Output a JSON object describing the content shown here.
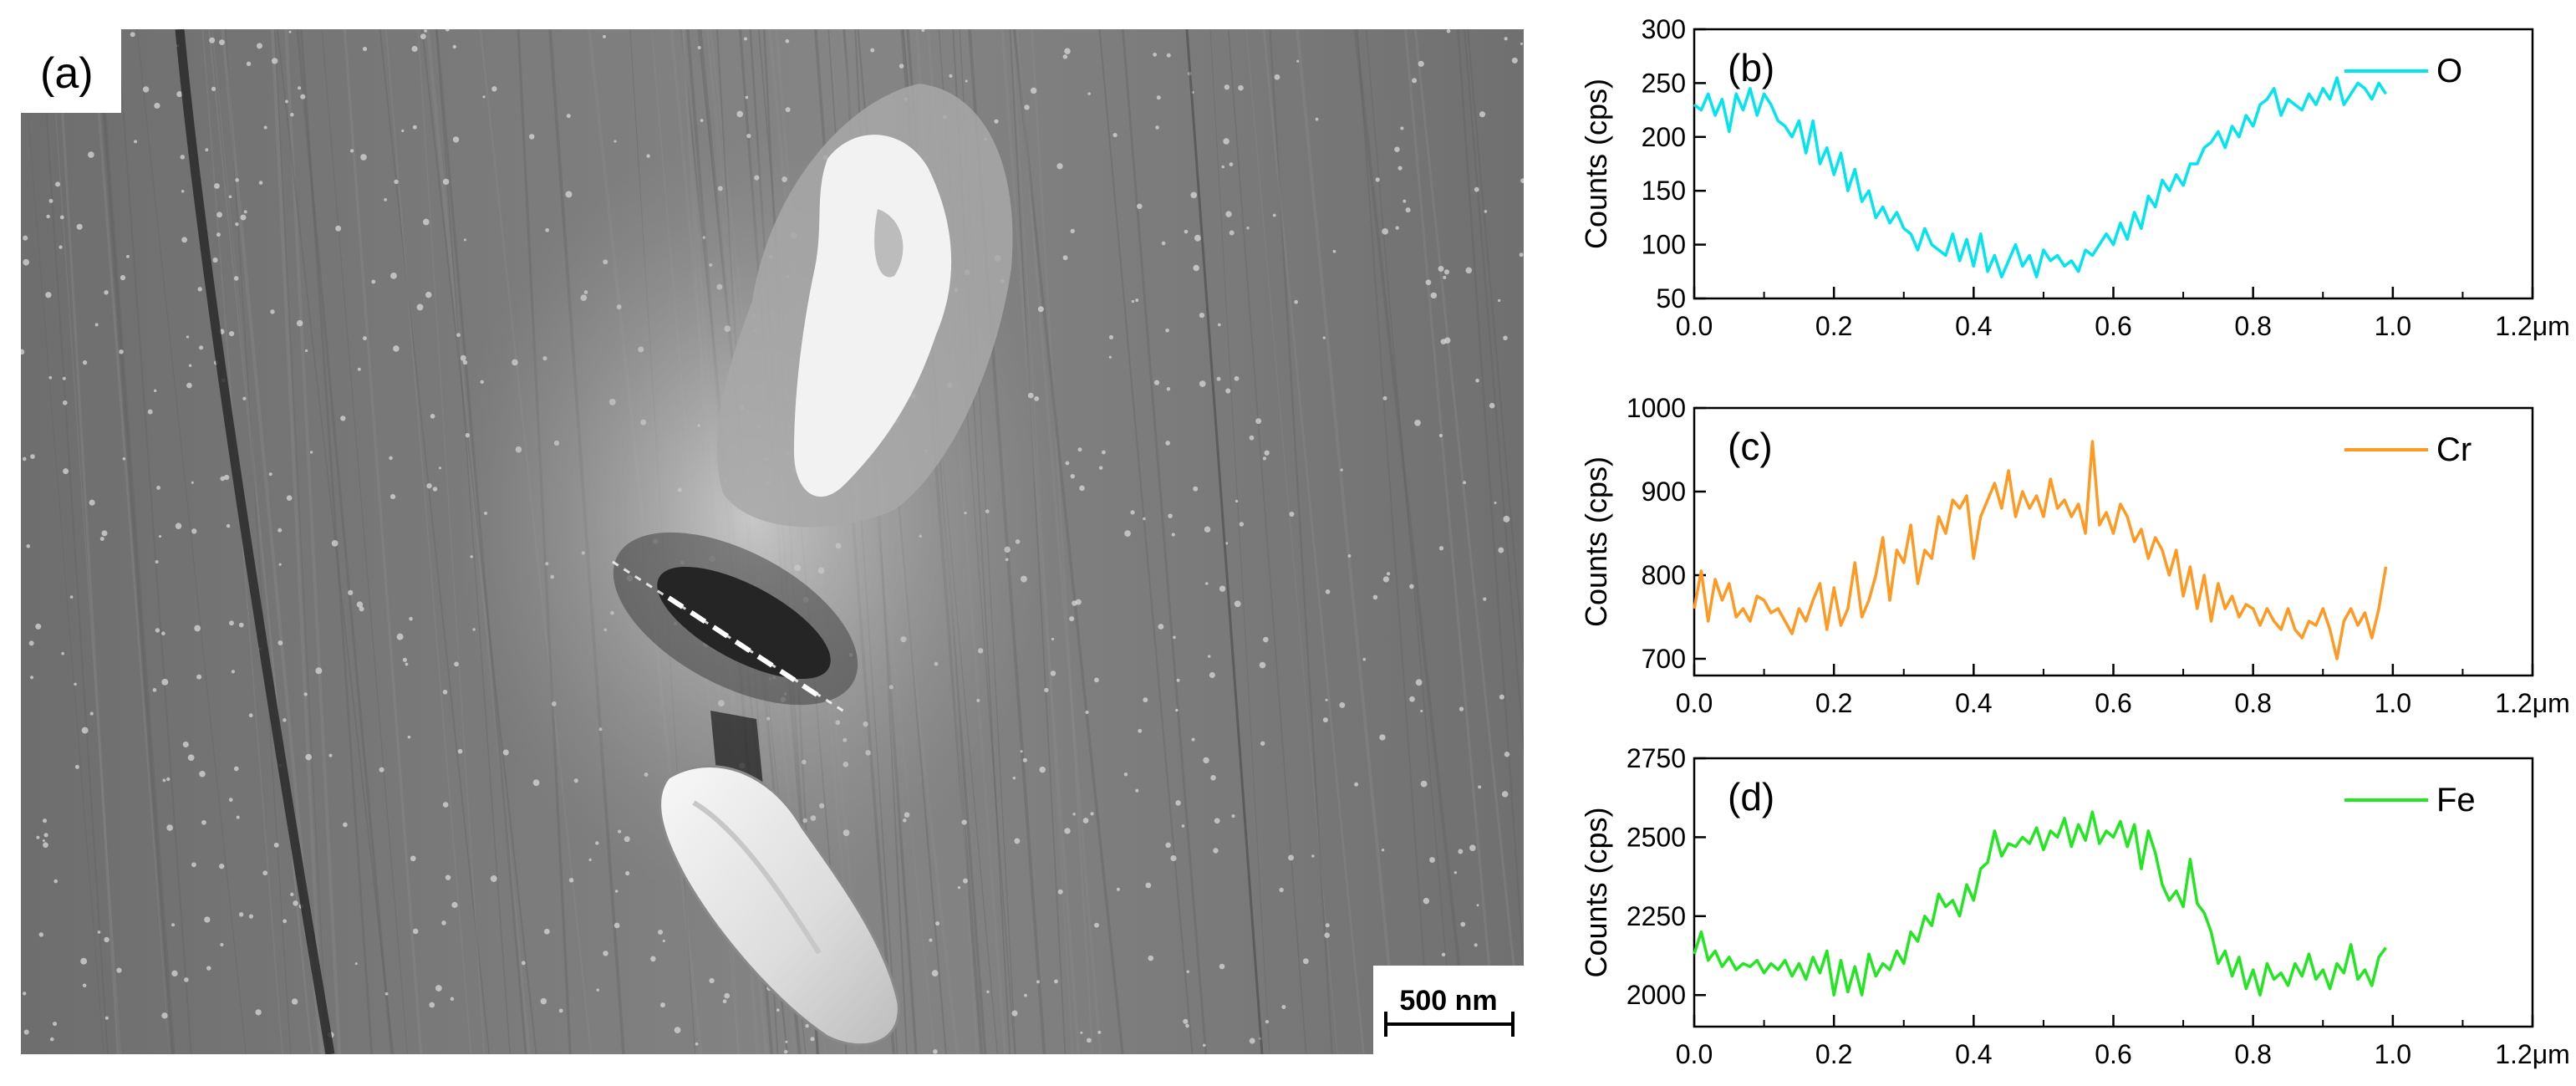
{
  "panel_a": {
    "label": "(a)",
    "scale_bar_label": "500 nm"
  },
  "chart_data": [
    {
      "type": "line",
      "panel_label": "(b)",
      "ylabel": "Counts (cps)",
      "xlim": [
        0,
        1.2
      ],
      "ylim": [
        50,
        300
      ],
      "x_ticks": [
        "0.0",
        "0.2",
        "0.4",
        "0.6",
        "0.8",
        "1.0",
        "1.2μm"
      ],
      "y_ticks": [
        "50",
        "100",
        "150",
        "200",
        "250",
        "300"
      ],
      "legend_position": "top-right",
      "series": [
        {
          "name": "O",
          "color": "#00e5ee",
          "x_step": 0.01,
          "values": [
            230,
            225,
            240,
            220,
            235,
            205,
            240,
            225,
            245,
            220,
            240,
            230,
            215,
            210,
            200,
            215,
            185,
            215,
            175,
            190,
            165,
            185,
            150,
            170,
            140,
            150,
            125,
            135,
            120,
            130,
            115,
            110,
            95,
            115,
            100,
            95,
            90,
            110,
            85,
            105,
            80,
            110,
            75,
            90,
            70,
            85,
            100,
            80,
            90,
            70,
            95,
            85,
            90,
            80,
            85,
            75,
            95,
            90,
            100,
            110,
            100,
            120,
            105,
            130,
            115,
            145,
            135,
            160,
            150,
            165,
            155,
            175,
            175,
            190,
            195,
            205,
            190,
            210,
            200,
            220,
            210,
            230,
            235,
            245,
            220,
            235,
            230,
            225,
            240,
            230,
            245,
            235,
            255,
            230,
            240,
            250,
            245,
            235,
            250,
            240
          ]
        }
      ]
    },
    {
      "type": "line",
      "panel_label": "(c)",
      "ylabel": "Counts (cps)",
      "xlim": [
        0,
        1.2
      ],
      "ylim": [
        680,
        1000
      ],
      "x_ticks": [
        "0.0",
        "0.2",
        "0.4",
        "0.6",
        "0.8",
        "1.0",
        "1.2μm"
      ],
      "y_ticks": [
        "700",
        "800",
        "900",
        "1000"
      ],
      "legend_position": "top-right",
      "series": [
        {
          "name": "Cr",
          "color": "#ff9922",
          "x_step": 0.01,
          "values": [
            760,
            805,
            745,
            795,
            770,
            790,
            750,
            760,
            745,
            775,
            770,
            755,
            760,
            745,
            730,
            760,
            745,
            770,
            790,
            735,
            785,
            740,
            760,
            815,
            750,
            770,
            800,
            845,
            770,
            830,
            815,
            860,
            790,
            830,
            820,
            870,
            850,
            890,
            880,
            895,
            820,
            870,
            890,
            910,
            880,
            925,
            870,
            900,
            880,
            895,
            870,
            915,
            880,
            890,
            870,
            885,
            850,
            960,
            860,
            875,
            850,
            885,
            870,
            840,
            855,
            820,
            845,
            830,
            800,
            830,
            775,
            810,
            760,
            800,
            745,
            790,
            760,
            775,
            750,
            765,
            760,
            740,
            760,
            745,
            735,
            760,
            735,
            725,
            745,
            740,
            760,
            735,
            700,
            745,
            760,
            740,
            755,
            725,
            760,
            810
          ]
        }
      ]
    },
    {
      "type": "line",
      "panel_label": "(d)",
      "ylabel": "Counts (cps)",
      "xlim": [
        0,
        1.2
      ],
      "ylim": [
        1900,
        2750
      ],
      "x_ticks": [
        "0.0",
        "0.2",
        "0.4",
        "0.6",
        "0.8",
        "1.0",
        "1.2μm"
      ],
      "y_ticks": [
        "2000",
        "2250",
        "2500",
        "2750"
      ],
      "legend_position": "top-right",
      "series": [
        {
          "name": "Fe",
          "color": "#22e622",
          "x_step": 0.01,
          "values": [
            2130,
            2200,
            2110,
            2140,
            2090,
            2120,
            2080,
            2100,
            2090,
            2110,
            2070,
            2100,
            2080,
            2110,
            2060,
            2100,
            2050,
            2120,
            2070,
            2140,
            2000,
            2110,
            2010,
            2090,
            2000,
            2130,
            2060,
            2100,
            2080,
            2140,
            2100,
            2200,
            2170,
            2250,
            2220,
            2320,
            2280,
            2300,
            2250,
            2350,
            2300,
            2400,
            2420,
            2520,
            2440,
            2480,
            2470,
            2500,
            2480,
            2530,
            2460,
            2520,
            2500,
            2560,
            2470,
            2540,
            2490,
            2580,
            2480,
            2520,
            2500,
            2550,
            2470,
            2540,
            2400,
            2520,
            2450,
            2350,
            2300,
            2330,
            2280,
            2430,
            2290,
            2260,
            2200,
            2100,
            2140,
            2060,
            2120,
            2020,
            2080,
            2000,
            2100,
            2050,
            2070,
            2030,
            2100,
            2060,
            2130,
            2050,
            2080,
            2020,
            2100,
            2070,
            2160,
            2050,
            2080,
            2030,
            2120,
            2150
          ]
        }
      ]
    }
  ]
}
